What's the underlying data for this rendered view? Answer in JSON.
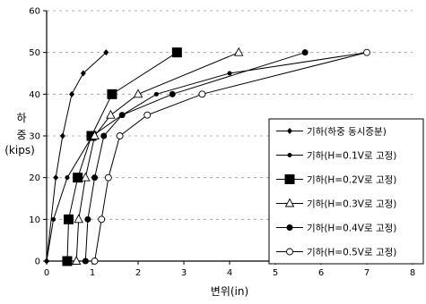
{
  "chart_data": {
    "type": "line",
    "title": "",
    "xlabel": "변위(in)",
    "ylabel_lines": [
      "하",
      "중",
      "(kips)"
    ],
    "xlim": [
      0,
      8
    ],
    "ylim": [
      0,
      60
    ],
    "x_ticks": [
      0,
      1,
      2,
      3,
      4,
      5,
      6,
      7,
      8
    ],
    "y_ticks": [
      0,
      10,
      20,
      30,
      40,
      50,
      60
    ],
    "grid": "horizontal dashed",
    "legend_position": "right",
    "series": [
      {
        "name": "기하(하중 동시증분)",
        "marker": "diamond-filled",
        "marker_size": "small",
        "x": [
          0,
          0.2,
          0.35,
          0.55,
          0.8,
          1.3
        ],
        "y": [
          0,
          20,
          30,
          40,
          45,
          50
        ]
      },
      {
        "name": "기하(H=0.1V로 고정)",
        "marker": "circle-filled",
        "marker_size": "small",
        "x": [
          0,
          0.15,
          0.45,
          1.0,
          1.65,
          2.4,
          4.0,
          7.0
        ],
        "y": [
          0,
          10,
          20,
          30,
          35,
          40,
          45,
          50
        ]
      },
      {
        "name": "기하(H=0.2V로 고정)",
        "marker": "square-filled",
        "marker_size": "large",
        "x": [
          0.45,
          0.48,
          0.68,
          0.98,
          1.43,
          2.85
        ],
        "y": [
          0,
          10,
          20,
          30,
          40,
          50
        ]
      },
      {
        "name": "기하(H=0.3V로 고정)",
        "marker": "triangle-open",
        "marker_size": "medium",
        "x": [
          0.65,
          0.7,
          0.85,
          1.05,
          1.4,
          2.0,
          4.2
        ],
        "y": [
          0,
          10,
          20,
          30,
          35,
          40,
          50
        ]
      },
      {
        "name": "기하(H=0.4V로 고정)",
        "marker": "circle-filled",
        "marker_size": "medium",
        "x": [
          0.85,
          0.9,
          1.05,
          1.25,
          1.65,
          2.75,
          5.65
        ],
        "y": [
          0,
          10,
          20,
          30,
          35,
          40,
          50
        ]
      },
      {
        "name": "기하(H=0.5V로 고정)",
        "marker": "circle-open",
        "marker_size": "medium",
        "x": [
          1.05,
          1.2,
          1.35,
          1.6,
          2.2,
          3.4,
          7.0
        ],
        "y": [
          0,
          10,
          20,
          30,
          35,
          40,
          50
        ]
      }
    ]
  }
}
